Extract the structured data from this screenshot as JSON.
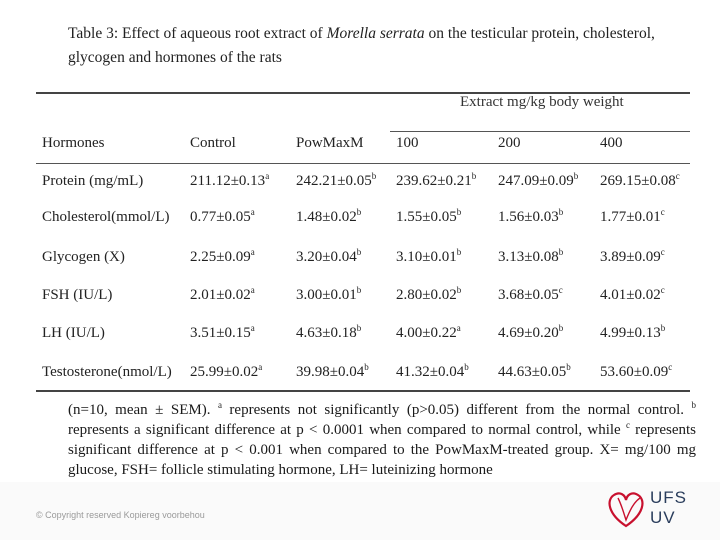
{
  "caption": {
    "prefix": "Table 3: Effect of aqueous root extract of ",
    "species": "Morella serrata",
    "suffix": " on the testicular protein, cholesterol, glycogen and hormones of the rats"
  },
  "table": {
    "group_header": "Extract mg/kg body weight",
    "columns": [
      "Hormones",
      "Control",
      "PowMaxM",
      "100",
      "200",
      "400"
    ],
    "rows": [
      {
        "label": "Protein (mg/mL)",
        "cells": [
          {
            "v": "211.12±0.13",
            "s": "a"
          },
          {
            "v": "242.21±0.05",
            "s": "b"
          },
          {
            "v": "239.62±0.21",
            "s": "b"
          },
          {
            "v": "247.09±0.09",
            "s": "b"
          },
          {
            "v": "269.15±0.08",
            "s": "c"
          }
        ]
      },
      {
        "label": "Cholesterol(mmol/L)",
        "cells": [
          {
            "v": "0.77±0.05",
            "s": "a"
          },
          {
            "v": "1.48±0.02",
            "s": "b"
          },
          {
            "v": "1.55±0.05",
            "s": "b"
          },
          {
            "v": "1.56±0.03",
            "s": "b"
          },
          {
            "v": "1.77±0.01",
            "s": "c"
          }
        ]
      },
      {
        "label": "Glycogen (X)",
        "cells": [
          {
            "v": "2.25±0.09",
            "s": "a"
          },
          {
            "v": "3.20±0.04",
            "s": "b"
          },
          {
            "v": "3.10±0.01",
            "s": "b"
          },
          {
            "v": "3.13±0.08",
            "s": "b"
          },
          {
            "v": "3.89±0.09",
            "s": "c"
          }
        ]
      },
      {
        "label": "FSH (IU/L)",
        "cells": [
          {
            "v": "2.01±0.02",
            "s": "a"
          },
          {
            "v": "3.00±0.01",
            "s": "b"
          },
          {
            "v": "2.80±0.02",
            "s": "b"
          },
          {
            "v": "3.68±0.05",
            "s": "c"
          },
          {
            "v": "4.01±0.02",
            "s": "c"
          }
        ]
      },
      {
        "label": "LH (IU/L)",
        "cells": [
          {
            "v": "3.51±0.15",
            "s": "a"
          },
          {
            "v": "4.63±0.18",
            "s": "b"
          },
          {
            "v": "4.00±0.22",
            "s": "a"
          },
          {
            "v": "4.69±0.20",
            "s": "b"
          },
          {
            "v": "4.99±0.13",
            "s": "b"
          }
        ]
      },
      {
        "label": "Testosterone(nmol/L)",
        "cells": [
          {
            "v": "25.99±0.02",
            "s": "a"
          },
          {
            "v": "39.98±0.04",
            "s": "b"
          },
          {
            "v": "41.32±0.04",
            "s": "b"
          },
          {
            "v": "44.63±0.05",
            "s": "b"
          },
          {
            "v": "53.60±0.09",
            "s": "c"
          }
        ]
      }
    ]
  },
  "footnote": {
    "p1": "(n=10, mean ± SEM). ",
    "s1": "a",
    "p2": " represents not significantly (p>0.05) different from the normal control. ",
    "s2": "b",
    "p3": " represents a significant difference at p < 0.0001 when compared to normal control, while ",
    "s3": "c",
    "p4": " represents significant difference at p < 0.001 when compared to the PowMaxM-treated group. X= mg/100 mg glucose, FSH= follicle stimulating hormone, LH= luteinizing hormone"
  },
  "copyright": "© Copyright reserved Kopiereg voorbehou",
  "logo": {
    "line1": "UFS",
    "line2": "UV",
    "color": "#c8102e"
  }
}
